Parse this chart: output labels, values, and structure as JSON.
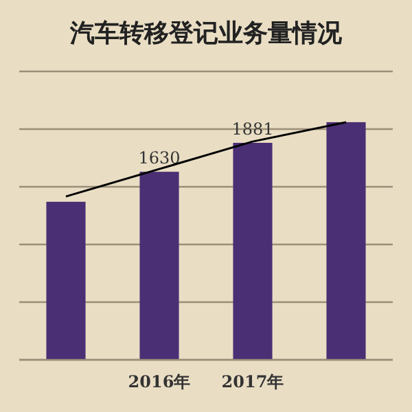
{
  "chart_data": {
    "type": "bar",
    "title": "汽车转移登记业务量情况",
    "categories": [
      null,
      "2016年",
      "2017年",
      null
    ],
    "series": [
      {
        "color": "#4b2f74",
        "values": [
          1370,
          1630,
          1881,
          2060
        ],
        "value_labels": [
          null,
          "1630",
          "1881",
          null
        ]
      },
      {
        "type": "line",
        "color": "#000000",
        "values": [
          1416,
          1654,
          1892,
          2059
        ]
      }
    ],
    "ylim": [
      0,
      2500
    ],
    "yticks": [
      {
        "value": 0,
        "label": null
      },
      {
        "value": 500,
        "label": null
      },
      {
        "value": 1000,
        "label": null
      },
      {
        "value": 1500,
        "label": null
      },
      {
        "value": 2000,
        "label": null
      }
    ],
    "grid": "y",
    "tick_labels": "x"
  }
}
